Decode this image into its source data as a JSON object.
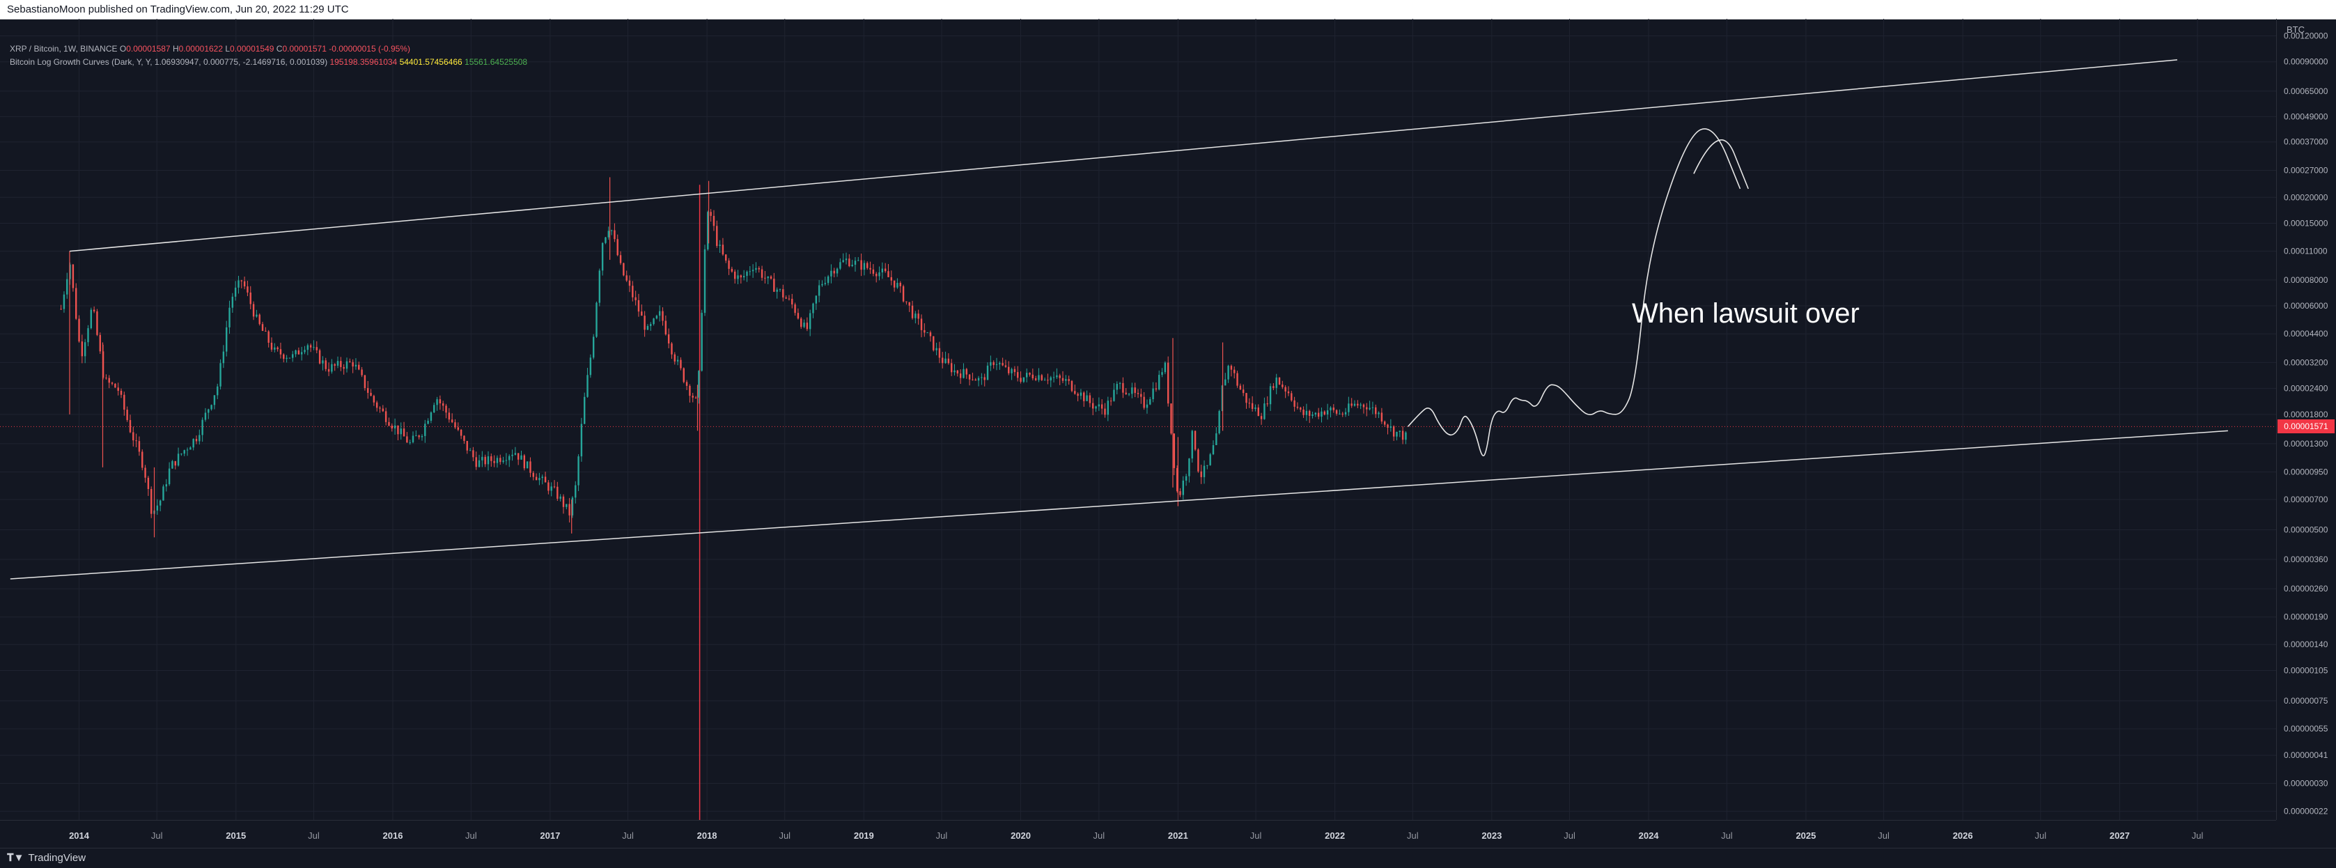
{
  "header": {
    "published_text": "SebastianoMoon published on TradingView.com, Jun 20, 2022 11:29 UTC"
  },
  "legend": {
    "symbol": "XRP / Bitcoin, 1W, BINANCE",
    "ohlc": {
      "open_label": "O",
      "open": "0.00001587",
      "high_label": "H",
      "high": "0.00001622",
      "low_label": "L",
      "low": "0.00001549",
      "close_label": "C",
      "close": "0.00001571",
      "change": "-0.00000015 (-0.95%)"
    },
    "indicator": {
      "name": "Bitcoin Log Growth Curves (Dark, Y, Y, 1.06930947, 0.000775, -2.1469716, 0.001039)",
      "value_1": "195198.35961034",
      "value_2": "54401.57456466",
      "value_3": "15561.64525508"
    }
  },
  "price_axis": {
    "currency": "BTC",
    "last_price_tag": "0.00001571"
  },
  "footer": {
    "brand": "TradingView",
    "brand_icon": "tradingview-logo-icon"
  },
  "colors": {
    "up": "#26a69a",
    "down": "#ef5350",
    "background": "#131722",
    "grid": "#1f2330",
    "price_line": "#f23645",
    "drawing": "#e6e6e6"
  },
  "annotation": {
    "text": "When lawsuit over"
  },
  "chart_data": {
    "type": "candlestick",
    "symbol": "XRP / Bitcoin",
    "interval": "1W",
    "exchange": "BINANCE",
    "y_scale": "log",
    "y_range": [
      2e-07,
      0.00145
    ],
    "x_range": [
      "2013-07-01",
      "2027-12-31"
    ],
    "y_ticks": [
      "0.00120000",
      "0.00090000",
      "0.00065000",
      "0.00049000",
      "0.00037000",
      "0.00027000",
      "0.00020000",
      "0.00015000",
      "0.00011000",
      "0.00008000",
      "0.00006000",
      "0.00004400",
      "0.00003200",
      "0.00002400",
      "0.00001800",
      "0.00001300",
      "0.00000950",
      "0.00000700",
      "0.00000500",
      "0.00000360",
      "0.00000260",
      "0.00000190",
      "0.00000140",
      "0.00000105",
      "0.00000075",
      "0.00000055",
      "0.00000041",
      "0.00000030",
      "0.00000022"
    ],
    "x_ticks": [
      {
        "label": "2014",
        "date": "2014-01-01",
        "bold": true
      },
      {
        "label": "Jul",
        "date": "2014-07-01"
      },
      {
        "label": "2015",
        "date": "2015-01-01",
        "bold": true
      },
      {
        "label": "Jul",
        "date": "2015-07-01"
      },
      {
        "label": "2016",
        "date": "2016-01-01",
        "bold": true
      },
      {
        "label": "Jul",
        "date": "2016-07-01"
      },
      {
        "label": "2017",
        "date": "2017-01-01",
        "bold": true
      },
      {
        "label": "Jul",
        "date": "2017-07-01"
      },
      {
        "label": "2018",
        "date": "2018-01-01",
        "bold": true
      },
      {
        "label": "Jul",
        "date": "2018-07-01"
      },
      {
        "label": "2019",
        "date": "2019-01-01",
        "bold": true
      },
      {
        "label": "Jul",
        "date": "2019-07-01"
      },
      {
        "label": "2020",
        "date": "2020-01-01",
        "bold": true
      },
      {
        "label": "Jul",
        "date": "2020-07-01"
      },
      {
        "label": "2021",
        "date": "2021-01-01",
        "bold": true
      },
      {
        "label": "Jul",
        "date": "2021-07-01"
      },
      {
        "label": "2022",
        "date": "2022-01-01",
        "bold": true
      },
      {
        "label": "Jul",
        "date": "2022-07-01"
      },
      {
        "label": "2023",
        "date": "2023-01-01",
        "bold": true
      },
      {
        "label": "Jul",
        "date": "2023-07-01"
      },
      {
        "label": "2024",
        "date": "2024-01-01",
        "bold": true
      },
      {
        "label": "Jul",
        "date": "2024-07-01"
      },
      {
        "label": "2025",
        "date": "2025-01-01",
        "bold": true
      },
      {
        "label": "Jul",
        "date": "2025-07-01"
      },
      {
        "label": "2026",
        "date": "2026-01-01",
        "bold": true
      },
      {
        "label": "Jul",
        "date": "2026-07-01"
      },
      {
        "label": "2027",
        "date": "2027-01-01",
        "bold": true
      },
      {
        "label": "Jul",
        "date": "2027-07-01"
      }
    ],
    "price_path": [
      [
        "2013-11-20",
        5.8e-05
      ],
      [
        "2013-12-10",
        0.0001
      ],
      [
        "2014-01-05",
        3.4e-05
      ],
      [
        "2014-02-01",
        6e-05
      ],
      [
        "2014-03-01",
        2.6e-05
      ],
      [
        "2014-04-01",
        2.4e-05
      ],
      [
        "2014-05-01",
        1.5e-05
      ],
      [
        "2014-06-01",
        1e-05
      ],
      [
        "2014-06-20",
        6e-06
      ],
      [
        "2014-07-10",
        7e-06
      ],
      [
        "2014-08-01",
        1e-05
      ],
      [
        "2014-09-01",
        1.2e-05
      ],
      [
        "2014-10-01",
        1.4e-05
      ],
      [
        "2014-11-20",
        2.5e-05
      ],
      [
        "2014-12-20",
        6.5e-05
      ],
      [
        "2015-01-15",
        8e-05
      ],
      [
        "2015-02-20",
        5e-05
      ],
      [
        "2015-04-01",
        3.6e-05
      ],
      [
        "2015-05-15",
        3.4e-05
      ],
      [
        "2015-06-15",
        4e-05
      ],
      [
        "2015-08-01",
        3e-05
      ],
      [
        "2015-10-01",
        3.2e-05
      ],
      [
        "2015-11-15",
        2.1e-05
      ],
      [
        "2016-01-01",
        1.6e-05
      ],
      [
        "2016-02-10",
        1.3e-05
      ],
      [
        "2016-03-10",
        1.5e-05
      ],
      [
        "2016-04-10",
        2.2e-05
      ],
      [
        "2016-05-15",
        1.7e-05
      ],
      [
        "2016-06-15",
        1.3e-05
      ],
      [
        "2016-07-15",
        1.05e-05
      ],
      [
        "2016-09-01",
        1.1e-05
      ],
      [
        "2016-10-10",
        1.2e-05
      ],
      [
        "2016-11-10",
        1e-05
      ],
      [
        "2016-12-15",
        8.5e-06
      ],
      [
        "2017-01-15",
        7.5e-06
      ],
      [
        "2017-02-15",
        6e-06
      ],
      [
        "2017-03-01",
        8e-06
      ],
      [
        "2017-03-20",
        2e-05
      ],
      [
        "2017-04-10",
        4e-05
      ],
      [
        "2017-05-01",
        0.00012
      ],
      [
        "2017-05-20",
        0.00015
      ],
      [
        "2017-06-15",
        9e-05
      ],
      [
        "2017-07-15",
        6.5e-05
      ],
      [
        "2017-08-15",
        4.5e-05
      ],
      [
        "2017-09-15",
        5.5e-05
      ],
      [
        "2017-10-15",
        3.5e-05
      ],
      [
        "2017-11-15",
        2.5e-05
      ],
      [
        "2017-12-10",
        2e-05
      ],
      [
        "2017-12-25",
        0.0001
      ],
      [
        "2018-01-05",
        0.00018
      ],
      [
        "2018-01-25",
        0.00012
      ],
      [
        "2018-02-20",
        9e-05
      ],
      [
        "2018-03-20",
        8e-05
      ],
      [
        "2018-04-20",
        9.5e-05
      ],
      [
        "2018-05-20",
        8e-05
      ],
      [
        "2018-06-20",
        7e-05
      ],
      [
        "2018-07-20",
        6e-05
      ],
      [
        "2018-08-20",
        4.5e-05
      ],
      [
        "2018-09-20",
        7.5e-05
      ],
      [
        "2018-10-20",
        9e-05
      ],
      [
        "2018-11-20",
        0.0001
      ],
      [
        "2018-12-20",
        9.5e-05
      ],
      [
        "2019-01-20",
        9e-05
      ],
      [
        "2019-02-20",
        8.5e-05
      ],
      [
        "2019-03-20",
        7.5e-05
      ],
      [
        "2019-05-01",
        5.2e-05
      ],
      [
        "2019-06-01",
        4.2e-05
      ],
      [
        "2019-07-01",
        3.3e-05
      ],
      [
        "2019-08-01",
        2.9e-05
      ],
      [
        "2019-09-01",
        2.8e-05
      ],
      [
        "2019-10-01",
        2.6e-05
      ],
      [
        "2019-11-01",
        3.3e-05
      ],
      [
        "2019-12-01",
        2.9e-05
      ],
      [
        "2020-01-01",
        2.7e-05
      ],
      [
        "2020-02-01",
        2.8e-05
      ],
      [
        "2020-03-15",
        2.7e-05
      ],
      [
        "2020-04-15",
        2.6e-05
      ],
      [
        "2020-05-15",
        2.3e-05
      ],
      [
        "2020-06-15",
        2e-05
      ],
      [
        "2020-07-15",
        1.9e-05
      ],
      [
        "2020-08-15",
        2.5e-05
      ],
      [
        "2020-09-15",
        2.3e-05
      ],
      [
        "2020-10-15",
        2e-05
      ],
      [
        "2020-11-15",
        2.6e-05
      ],
      [
        "2020-12-01",
        3.2e-05
      ],
      [
        "2020-12-20",
        1.2e-05
      ],
      [
        "2021-01-01",
        7e-06
      ],
      [
        "2021-01-20",
        9.5e-06
      ],
      [
        "2021-02-05",
        1.5e-05
      ],
      [
        "2021-02-20",
        9e-06
      ],
      [
        "2021-03-10",
        1e-05
      ],
      [
        "2021-04-01",
        1.4e-05
      ],
      [
        "2021-04-15",
        2.5e-05
      ],
      [
        "2021-05-01",
        3.2e-05
      ],
      [
        "2021-05-20",
        2.5e-05
      ],
      [
        "2021-06-15",
        2e-05
      ],
      [
        "2021-07-15",
        1.8e-05
      ],
      [
        "2021-08-15",
        2.7e-05
      ],
      [
        "2021-09-15",
        2.3e-05
      ],
      [
        "2021-10-15",
        1.8e-05
      ],
      [
        "2021-11-15",
        1.8e-05
      ],
      [
        "2021-12-15",
        1.9e-05
      ],
      [
        "2022-01-15",
        1.8e-05
      ],
      [
        "2022-02-15",
        2e-05
      ],
      [
        "2022-03-15",
        2e-05
      ],
      [
        "2022-04-15",
        1.8e-05
      ],
      [
        "2022-05-15",
        1.5e-05
      ],
      [
        "2022-06-15",
        1.4e-05
      ],
      [
        "2022-06-20",
        1.571e-05
      ]
    ],
    "big_wicks": [
      {
        "date": "2013-12-10",
        "high": 0.00011,
        "low": 1.8e-05
      },
      {
        "date": "2014-02-25",
        "high": 4e-05,
        "low": 1e-05
      },
      {
        "date": "2014-06-25",
        "high": 1e-05,
        "low": 4.6e-06
      },
      {
        "date": "2017-02-20",
        "high": 7e-06,
        "low": 4.8e-06
      },
      {
        "date": "2017-05-20",
        "high": 0.00025,
        "low": 0.0001
      },
      {
        "date": "2017-12-10",
        "high": 2.5e-05,
        "low": 1.5e-05
      },
      {
        "date": "2018-01-05",
        "high": 0.00024,
        "low": 0.00012
      },
      {
        "date": "2020-12-20",
        "high": 4.2e-05,
        "low": 8e-06
      },
      {
        "date": "2021-01-01",
        "high": 1.4e-05,
        "low": 6.5e-06
      },
      {
        "date": "2021-04-15",
        "high": 4e-05,
        "low": 1.5e-05
      }
    ],
    "trendlines": [
      {
        "name": "upper",
        "from": [
          "2013-12-10",
          0.00011
        ],
        "to": [
          "2027-05-15",
          0.00092
        ]
      },
      {
        "name": "lower",
        "from": [
          "2013-07-25",
          2.9e-06
        ],
        "to": [
          "2027-09-10",
          1.5e-05
        ]
      }
    ],
    "red_vertical_line_date": "2017-12-15",
    "last_price": 1.571e-05,
    "projection_path": [
      [
        "2022-06-20",
        1.571e-05
      ],
      [
        "2022-07-15",
        1.8e-05
      ],
      [
        "2022-08-10",
        2e-05
      ],
      [
        "2022-09-01",
        1.6e-05
      ],
      [
        "2022-09-25",
        1.4e-05
      ],
      [
        "2022-10-15",
        1.5e-05
      ],
      [
        "2022-10-28",
        1.8e-05
      ],
      [
        "2022-11-10",
        1.7e-05
      ],
      [
        "2022-11-25",
        1.45e-05
      ],
      [
        "2022-12-10",
        1.1e-05
      ],
      [
        "2022-12-20",
        1.2e-05
      ],
      [
        "2022-12-31",
        1.7e-05
      ],
      [
        "2023-01-15",
        1.9e-05
      ],
      [
        "2023-02-01",
        1.8e-05
      ],
      [
        "2023-02-20",
        2.2e-05
      ],
      [
        "2023-03-10",
        2.1e-05
      ],
      [
        "2023-03-25",
        2.1e-05
      ],
      [
        "2023-04-15",
        1.9e-05
      ],
      [
        "2023-05-10",
        2.5e-05
      ],
      [
        "2023-06-01",
        2.5e-05
      ],
      [
        "2023-06-20",
        2.3e-05
      ],
      [
        "2023-07-15",
        2e-05
      ],
      [
        "2023-08-15",
        1.75e-05
      ],
      [
        "2023-09-10",
        1.9e-05
      ],
      [
        "2023-10-01",
        1.8e-05
      ],
      [
        "2023-11-01",
        1.8e-05
      ],
      [
        "2023-12-01",
        2.5e-05
      ],
      [
        "2024-01-01",
        0.00011
      ],
      [
        "2024-04-01",
        0.0004
      ],
      [
        "2024-06-01",
        0.00045
      ],
      [
        "2024-08-01",
        0.00022
      ]
    ],
    "projection_arrow": [
      [
        "2024-04-15",
        0.00026
      ],
      [
        "2024-06-15",
        0.00048
      ],
      [
        "2024-08-20",
        0.00022
      ]
    ]
  }
}
